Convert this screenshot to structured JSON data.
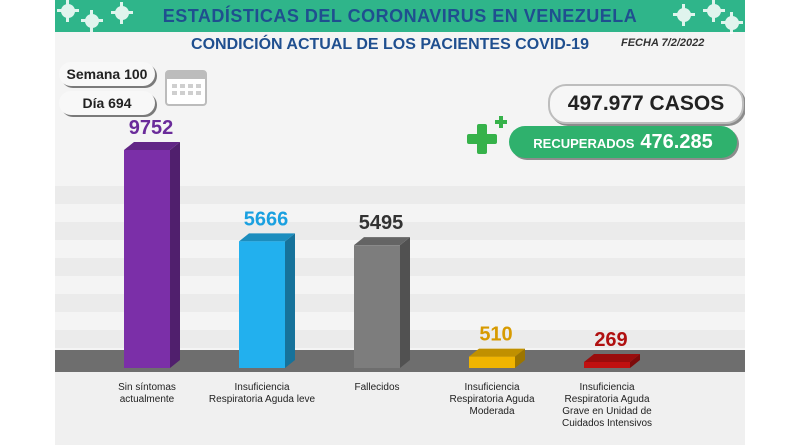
{
  "header": {
    "title": "ESTADÍSTICAS DEL CORONAVIRUS EN VENEZUELA",
    "subtitle": "CONDICIÓN ACTUAL DE LOS PACIENTES COVID-19",
    "fecha": "FECHA 7/2/2022"
  },
  "info": {
    "semana": "Semana 100",
    "dia": "Día 694"
  },
  "totals": {
    "casos": "497.977 CASOS",
    "recuperados_label": "RECUPERADOS",
    "recuperados_value": "476.285"
  },
  "icons": [
    "coronavirus-icon",
    "calendar-icon",
    "plus-icon"
  ],
  "colors": {
    "banner": "#2fb58a",
    "title_blue": "#1f4f8f",
    "recovered_green": "#2fb16d"
  },
  "chart_data": {
    "type": "bar",
    "categories": [
      "Sin síntomas actualmente",
      "Insuficiencia Respiratoria Aguda leve",
      "Fallecidos",
      "Insuficiencia Respiratoria Aguda Moderada",
      "Insuficiencia Respiratoria Aguda Grave en Unidad de Cuidados Intensivos"
    ],
    "values": [
      9752,
      5666,
      5495,
      510,
      269
    ],
    "value_labels": [
      "9752",
      "5666",
      "5495",
      "510",
      "269"
    ],
    "colors": [
      "#7b2fa8",
      "#22b0ee",
      "#7d7d7d",
      "#f0b400",
      "#c01010"
    ],
    "label_colors": [
      "#6a2b9a",
      "#1aa0e0",
      "#333333",
      "#d79a00",
      "#b01010"
    ],
    "ylim": [
      0,
      10000
    ],
    "grid": true
  }
}
